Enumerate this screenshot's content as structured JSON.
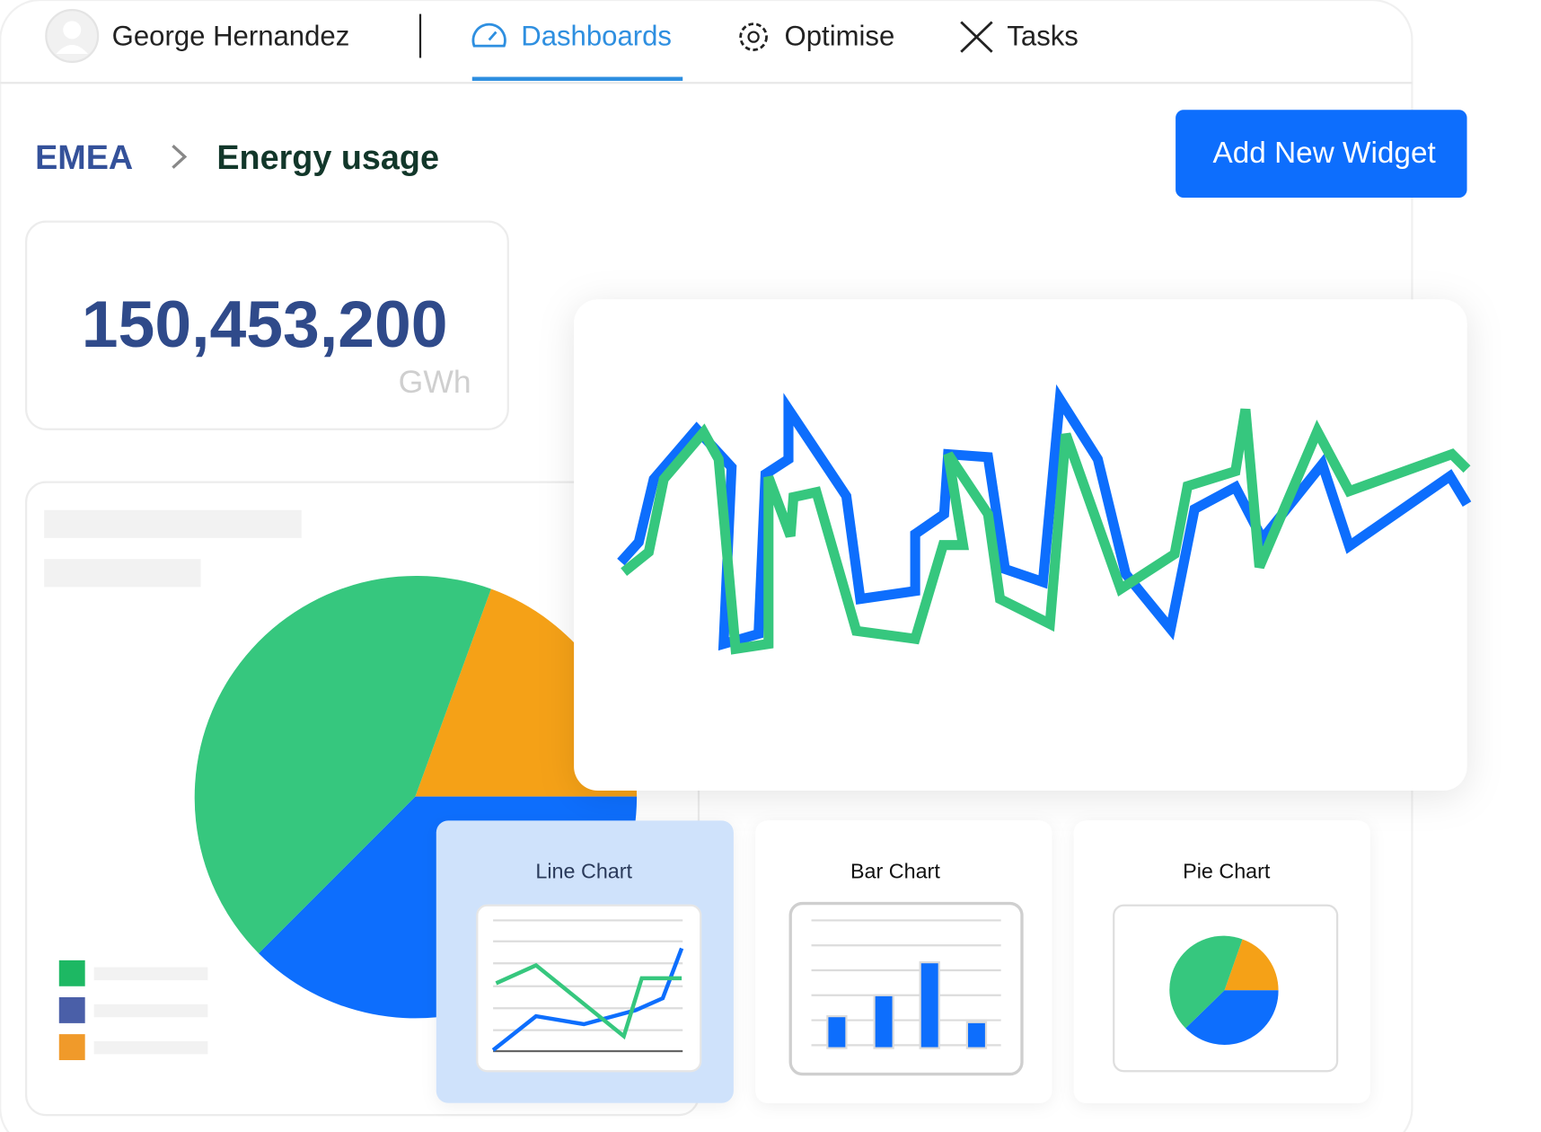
{
  "header": {
    "user": "George Hernandez",
    "nav": [
      "Dashboards",
      "Optimise",
      "Tasks"
    ]
  },
  "breadcrumb": [
    "EMEA",
    "Energy usage"
  ],
  "button": "Add New Widget",
  "kpi": {
    "value": "150,453,200",
    "unit": "GWh"
  },
  "widgets": [
    "Line Chart",
    "Bar Chart",
    "Pie Chart"
  ]
}
